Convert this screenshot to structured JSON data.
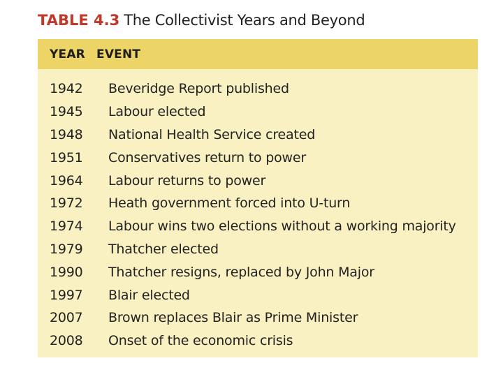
{
  "caption": {
    "label": "TABLE 4.3",
    "title": "The Collectivist Years and Beyond"
  },
  "table": {
    "headers": {
      "year": "YEAR",
      "event": "EVENT"
    },
    "rows": [
      {
        "year": "1942",
        "event": "Beveridge Report published"
      },
      {
        "year": "1945",
        "event": "Labour elected"
      },
      {
        "year": "1948",
        "event": "National Health Service created"
      },
      {
        "year": "1951",
        "event": "Conservatives return to power"
      },
      {
        "year": "1964",
        "event": "Labour returns to power"
      },
      {
        "year": "1972",
        "event": "Heath government forced into U-turn"
      },
      {
        "year": "1974",
        "event": "Labour wins two elections without a working majority"
      },
      {
        "year": "1979",
        "event": "Thatcher elected"
      },
      {
        "year": "1990",
        "event": "Thatcher resigns, replaced by John Major"
      },
      {
        "year": "1997",
        "event": "Blair elected"
      },
      {
        "year": "2007",
        "event": "Brown replaces Blair as Prime Minister"
      },
      {
        "year": "2008",
        "event": "Onset of the economic crisis"
      }
    ]
  },
  "colors": {
    "label": "#c0392b",
    "header_bg": "#ecd466",
    "body_bg": "#faf1c2",
    "text": "#222222"
  }
}
